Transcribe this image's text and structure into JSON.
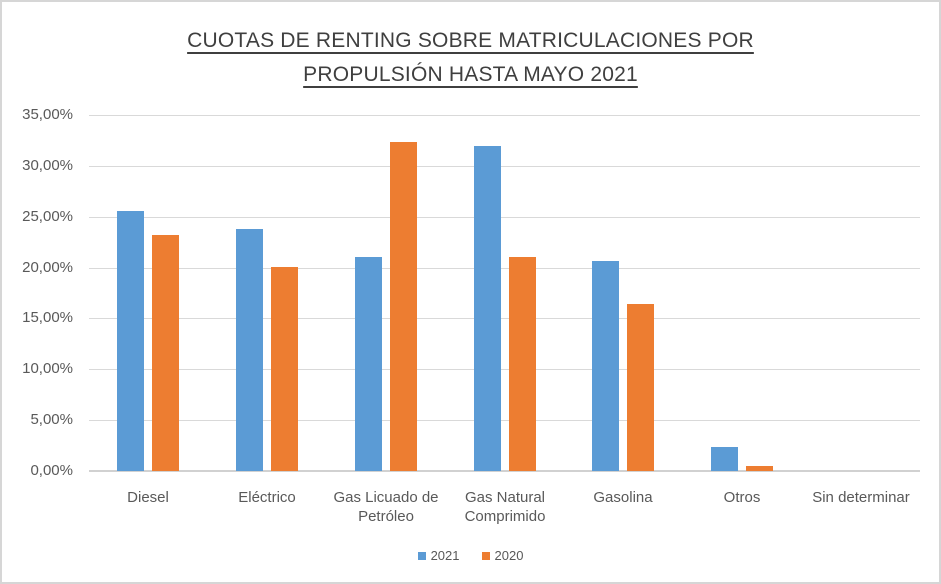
{
  "window": {
    "background": "#FFFFFF",
    "border_color": "#D6D6D6"
  },
  "chart_data": {
    "type": "bar",
    "title": "CUOTAS DE RENTING SOBRE MATRICULACIONES POR PROPULSIÓN HASTA MAYO 2021",
    "title_lines": [
      "CUOTAS DE RENTING SOBRE MATRICULACIONES POR",
      "PROPULSIÓN HASTA MAYO 2021"
    ],
    "categories": [
      "Diesel",
      "Eléctrico",
      "Gas Licuado de Petróleo",
      "Gas Natural Comprimido",
      "Gasolina",
      "Otros",
      "Sin determinar"
    ],
    "series": [
      {
        "name": "2021",
        "color": "#5B9BD5",
        "values": [
          25.6,
          23.8,
          21.0,
          32.0,
          20.6,
          2.4,
          0.0
        ]
      },
      {
        "name": "2020",
        "color": "#ED7D31",
        "values": [
          23.2,
          20.1,
          32.3,
          21.0,
          16.4,
          0.5,
          0.0
        ]
      }
    ],
    "xlabel": "",
    "ylabel": "",
    "ylim": [
      0,
      35
    ],
    "y_tick_step": 5,
    "y_ticks": [
      "35,00%",
      "30,00%",
      "25,00%",
      "20,00%",
      "15,00%",
      "10,00%",
      "5,00%",
      "0,00%"
    ],
    "grid": true,
    "legend_position": "bottom",
    "colors": {
      "gridline": "#D9D9D9",
      "axis_line": "#D1D1D1",
      "tick_label": "#595959",
      "title": "#3F3F3F"
    }
  }
}
